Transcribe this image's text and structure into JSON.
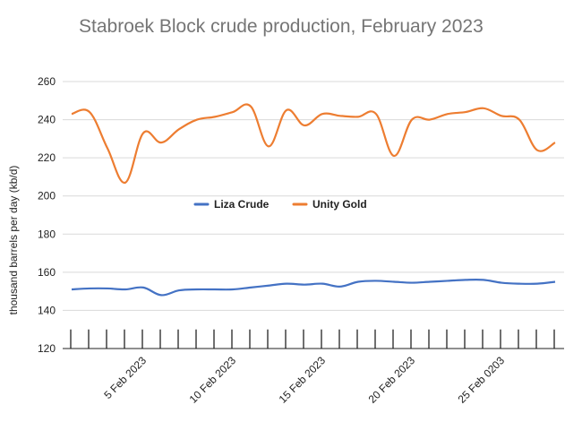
{
  "chart_data": {
    "type": "line",
    "title": "Stabroek Block crude production, February 2023",
    "xlabel": "",
    "ylabel": "thousand barrels per day (kb/d)",
    "ylim": [
      120,
      260
    ],
    "yticks": [
      120,
      140,
      160,
      180,
      200,
      220,
      240,
      260
    ],
    "grid": true,
    "legend_position": "center",
    "x": [
      1,
      2,
      3,
      4,
      5,
      6,
      7,
      8,
      9,
      10,
      11,
      12,
      13,
      14,
      15,
      16,
      17,
      18,
      19,
      20,
      21,
      22,
      23,
      24,
      25,
      26,
      27,
      28
    ],
    "xtick_labels": [
      {
        "x": 5,
        "label": "5 Feb 2023"
      },
      {
        "x": 10,
        "label": "10 Feb 2023"
      },
      {
        "x": 15,
        "label": "15 Feb 2023"
      },
      {
        "x": 20,
        "label": "20 Feb 2023"
      },
      {
        "x": 25,
        "label": "25 Feb 0203"
      }
    ],
    "series": [
      {
        "name": "Liza Crude",
        "color": "#4472c4",
        "values": [
          151,
          151.5,
          151.5,
          151,
          152,
          148,
          150.5,
          151,
          151,
          151,
          152,
          153,
          154,
          153.5,
          154,
          152.5,
          155,
          155.5,
          155,
          154.5,
          155,
          155.5,
          156,
          156,
          154.5,
          154,
          154,
          155
        ]
      },
      {
        "name": "Unity Gold",
        "color": "#ed7d31",
        "values": [
          243,
          244,
          225,
          207,
          233,
          228,
          235,
          240,
          241.5,
          244,
          247,
          226,
          245,
          237,
          243,
          242,
          241.5,
          243,
          221,
          240,
          240,
          243,
          244,
          246,
          242,
          240,
          224,
          228
        ]
      }
    ]
  }
}
